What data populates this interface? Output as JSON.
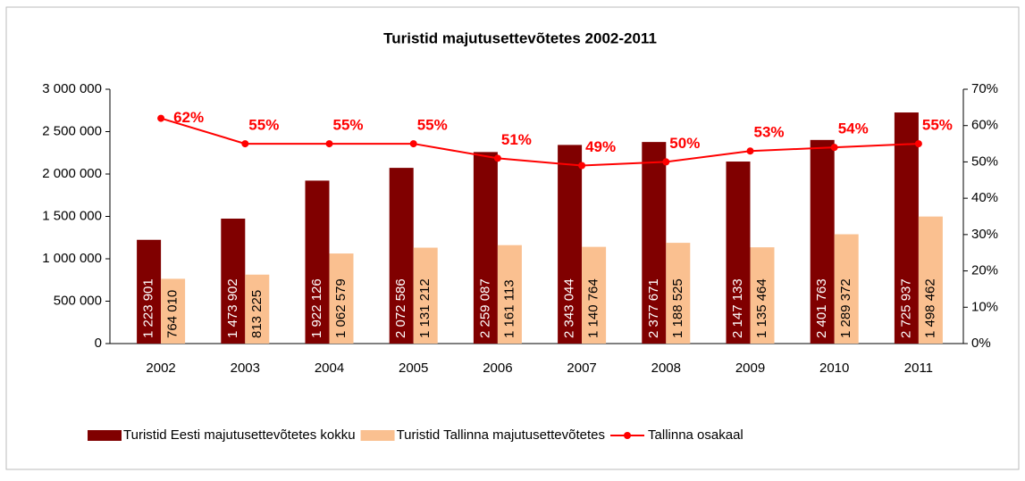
{
  "chart_data": {
    "type": "bar",
    "title": "Turistid majutusettevõtetes 2002-2011",
    "categories": [
      "2002",
      "2003",
      "2004",
      "2005",
      "2006",
      "2007",
      "2008",
      "2009",
      "2010",
      "2011"
    ],
    "series": [
      {
        "name": "Turistid Eesti majutusettevõtetes kokku",
        "color": "#800000",
        "type": "bar",
        "values": [
          1223901,
          1473902,
          1922126,
          2072586,
          2259087,
          2343044,
          2377671,
          2147133,
          2401763,
          2725937
        ],
        "value_labels": [
          "1 223 901",
          "1 473 902",
          "1 922 126",
          "2 072 586",
          "2 259 087",
          "2 343 044",
          "2 377 671",
          "2 147 133",
          "2 401 763",
          "2 725 937"
        ]
      },
      {
        "name": "Turistid Tallinna majutusettevõtetes",
        "color": "#FAC090",
        "type": "bar",
        "values": [
          764010,
          813225,
          1062579,
          1131212,
          1161113,
          1140764,
          1188525,
          1135464,
          1289372,
          1498462
        ],
        "value_labels": [
          "764 010",
          "813 225",
          "1 062 579",
          "1 131 212",
          "1 161 113",
          "1 140 764",
          "1 188 525",
          "1 135 464",
          "1 289 372",
          "1 498 462"
        ]
      },
      {
        "name": "Tallinna osakaal",
        "color": "#FF0000",
        "type": "line",
        "axis": "y2",
        "values": [
          62,
          55,
          55,
          55,
          51,
          49,
          50,
          53,
          54,
          55
        ],
        "value_labels": [
          "62%",
          "55%",
          "55%",
          "55%",
          "51%",
          "49%",
          "50%",
          "53%",
          "54%",
          "55%"
        ]
      }
    ],
    "ylim": [
      0,
      3000000
    ],
    "yticks": [
      {
        "value": 0,
        "label": "0"
      },
      {
        "value": 500000,
        "label": "500 000"
      },
      {
        "value": 1000000,
        "label": "1 000 000"
      },
      {
        "value": 1500000,
        "label": "1 500 000"
      },
      {
        "value": 2000000,
        "label": "2 000 000"
      },
      {
        "value": 2500000,
        "label": "2 500 000"
      },
      {
        "value": 3000000,
        "label": "3 000 000"
      }
    ],
    "y2lim": [
      0,
      70
    ],
    "y2ticks": [
      {
        "value": 0,
        "label": "0%"
      },
      {
        "value": 10,
        "label": "10%"
      },
      {
        "value": 20,
        "label": "20%"
      },
      {
        "value": 30,
        "label": "30%"
      },
      {
        "value": 40,
        "label": "40%"
      },
      {
        "value": 50,
        "label": "50%"
      },
      {
        "value": 60,
        "label": "60%"
      },
      {
        "value": 70,
        "label": "70%"
      }
    ],
    "legend": "bottom"
  }
}
